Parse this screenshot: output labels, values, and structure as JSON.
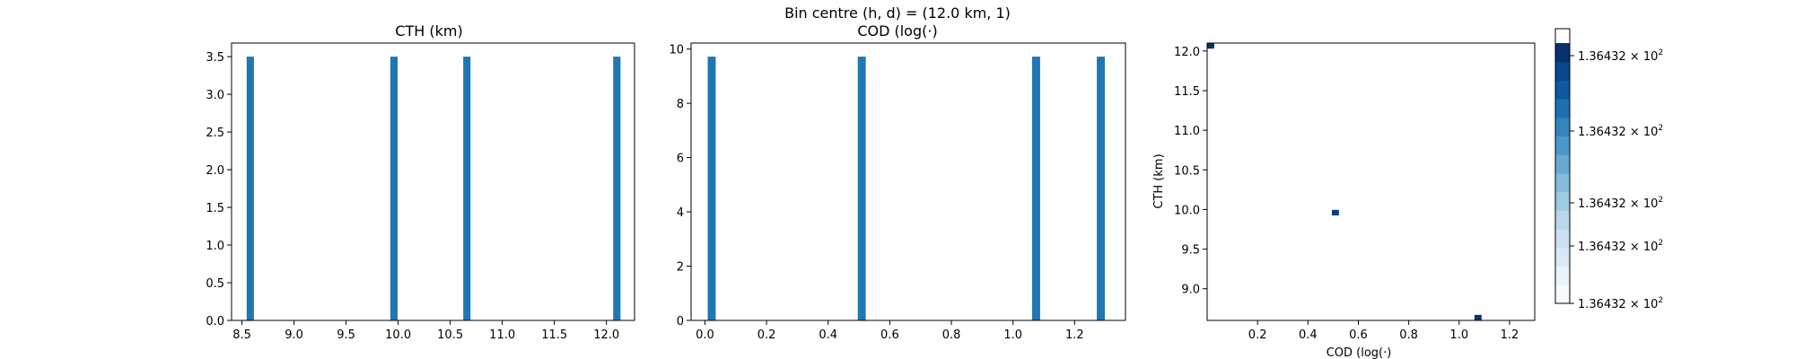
{
  "suptitle": "Bin centre (h, d) = (12.0 km, 1)",
  "chart_data": [
    {
      "type": "bar",
      "title": "CTH (km)",
      "xlabel": "",
      "ylabel": "",
      "xlim": [
        8.4,
        12.27
      ],
      "ylim": [
        0,
        3.68
      ],
      "xticks": [
        "8.5",
        "9.0",
        "9.5",
        "10.0",
        "10.5",
        "11.0",
        "11.5",
        "12.0"
      ],
      "yticks": [
        "0.0",
        "0.5",
        "1.0",
        "1.5",
        "2.0",
        "2.5",
        "3.0",
        "3.5"
      ],
      "bar_width": 0.07,
      "color": "#1f77b4",
      "x": [
        8.58,
        9.96,
        10.66,
        12.1
      ],
      "values": [
        3.5,
        3.5,
        3.5,
        3.5
      ]
    },
    {
      "type": "bar",
      "title": "COD (log(·)",
      "xlabel": "",
      "ylabel": "",
      "xlim": [
        -0.045,
        1.365
      ],
      "ylim": [
        0,
        10.22
      ],
      "xticks": [
        "0.0",
        "0.2",
        "0.4",
        "0.6",
        "0.8",
        "1.0",
        "1.2"
      ],
      "yticks": [
        "0",
        "2",
        "4",
        "6",
        "8",
        "10"
      ],
      "bar_width": 0.026,
      "color": "#1f77b4",
      "x": [
        0.022,
        0.509,
        1.075,
        1.285
      ],
      "values": [
        9.72,
        9.72,
        9.72,
        9.72
      ]
    },
    {
      "type": "heatmap",
      "title": "",
      "xlabel": "COD (log(·)",
      "ylabel": "CTH (km)",
      "xlim": [
        0.0,
        1.3
      ],
      "ylim": [
        8.6,
        12.1
      ],
      "xticks": [
        "0.2",
        "0.4",
        "0.6",
        "0.8",
        "1.0",
        "1.2"
      ],
      "yticks": [
        "9.0",
        "9.5",
        "10.0",
        "10.5",
        "11.0",
        "11.5",
        "12.0"
      ],
      "cell_size": [
        0.028,
        0.07
      ],
      "points": [
        {
          "x": 0.014,
          "y": 12.065,
          "color": "#08306b"
        },
        {
          "x": 0.509,
          "y": 9.96,
          "color": "#0b3f82"
        },
        {
          "x": 1.075,
          "y": 8.635,
          "color": "#08306b"
        }
      ]
    }
  ],
  "colorbar": {
    "tick_labels": [
      "1.36432 × 10",
      "1.36432 × 10",
      "1.36432 × 10",
      "1.36432 × 10",
      "1.36432 × 10"
    ],
    "exponent": "2",
    "colors": [
      "#f7fbff",
      "#eaf3fb",
      "#dbe9f6",
      "#cde0f1",
      "#bad6eb",
      "#a0cae3",
      "#84bcdb",
      "#66aad4",
      "#4a98c9",
      "#3383be",
      "#1f6fb3",
      "#0e58a2",
      "#08478f",
      "#08306b"
    ]
  }
}
